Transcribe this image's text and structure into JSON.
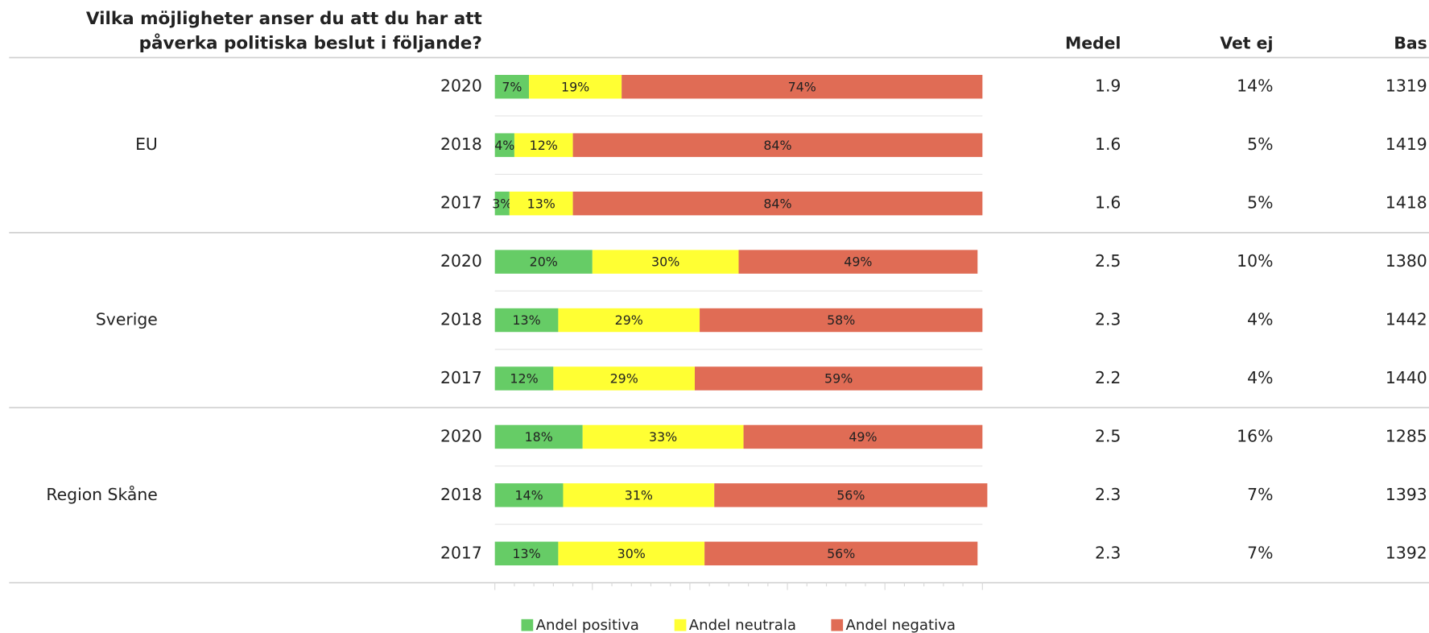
{
  "chart_data": {
    "type": "stacked_bar_h",
    "title": [
      "Vilka möjligheter anser du att du har att",
      "påverka politiska beslut i följande?"
    ],
    "groups": [
      "EU",
      "Sverige",
      "Region Skåne"
    ],
    "categories": [
      "2020",
      "2018",
      "2017",
      "2020",
      "2018",
      "2017",
      "2020",
      "2018",
      "2017"
    ],
    "series": [
      {
        "name": "Andel positiva",
        "color": "#66cc66",
        "values": [
          7,
          4,
          3,
          20,
          13,
          12,
          18,
          14,
          13
        ],
        "value_labels": [
          "7%",
          "4%",
          "3%",
          "20%",
          "13%",
          "12%",
          "18%",
          "14%",
          "13%"
        ]
      },
      {
        "name": "Andel neutrala",
        "color": "#ffff33",
        "values": [
          19,
          12,
          13,
          30,
          29,
          29,
          33,
          31,
          30
        ],
        "value_labels": [
          "19%",
          "12%",
          "13%",
          "30%",
          "29%",
          "29%",
          "33%",
          "31%",
          "30%"
        ]
      },
      {
        "name": "Andel negativa",
        "color": "#e06c55",
        "values": [
          74,
          84,
          84,
          49,
          58,
          59,
          49,
          56,
          56
        ],
        "value_labels": [
          "74%",
          "84%",
          "84%",
          "49%",
          "58%",
          "59%",
          "49%",
          "56%",
          "56%"
        ]
      }
    ],
    "columns": [
      {
        "name": "Medel",
        "values": [
          1.9,
          1.6,
          1.6,
          2.5,
          2.3,
          2.2,
          2.5,
          2.3,
          2.3
        ]
      },
      {
        "name": "Vet ej",
        "values": [
          14,
          5,
          5,
          10,
          4,
          4,
          16,
          7,
          7
        ],
        "value_labels": [
          "14%",
          "5%",
          "5%",
          "10%",
          "4%",
          "4%",
          "16%",
          "7%",
          "7%"
        ]
      },
      {
        "name": "Bas",
        "values": [
          1319,
          1419,
          1418,
          1380,
          1442,
          1440,
          1285,
          1393,
          1392
        ]
      }
    ],
    "xlim": [
      0,
      100
    ],
    "xticks": [
      0,
      4,
      8,
      12,
      16,
      20,
      24,
      28,
      32,
      36,
      40,
      44,
      48,
      52,
      56,
      60,
      64,
      68,
      72,
      76,
      80,
      84,
      88,
      92,
      96,
      100
    ],
    "legend": "bottom"
  }
}
